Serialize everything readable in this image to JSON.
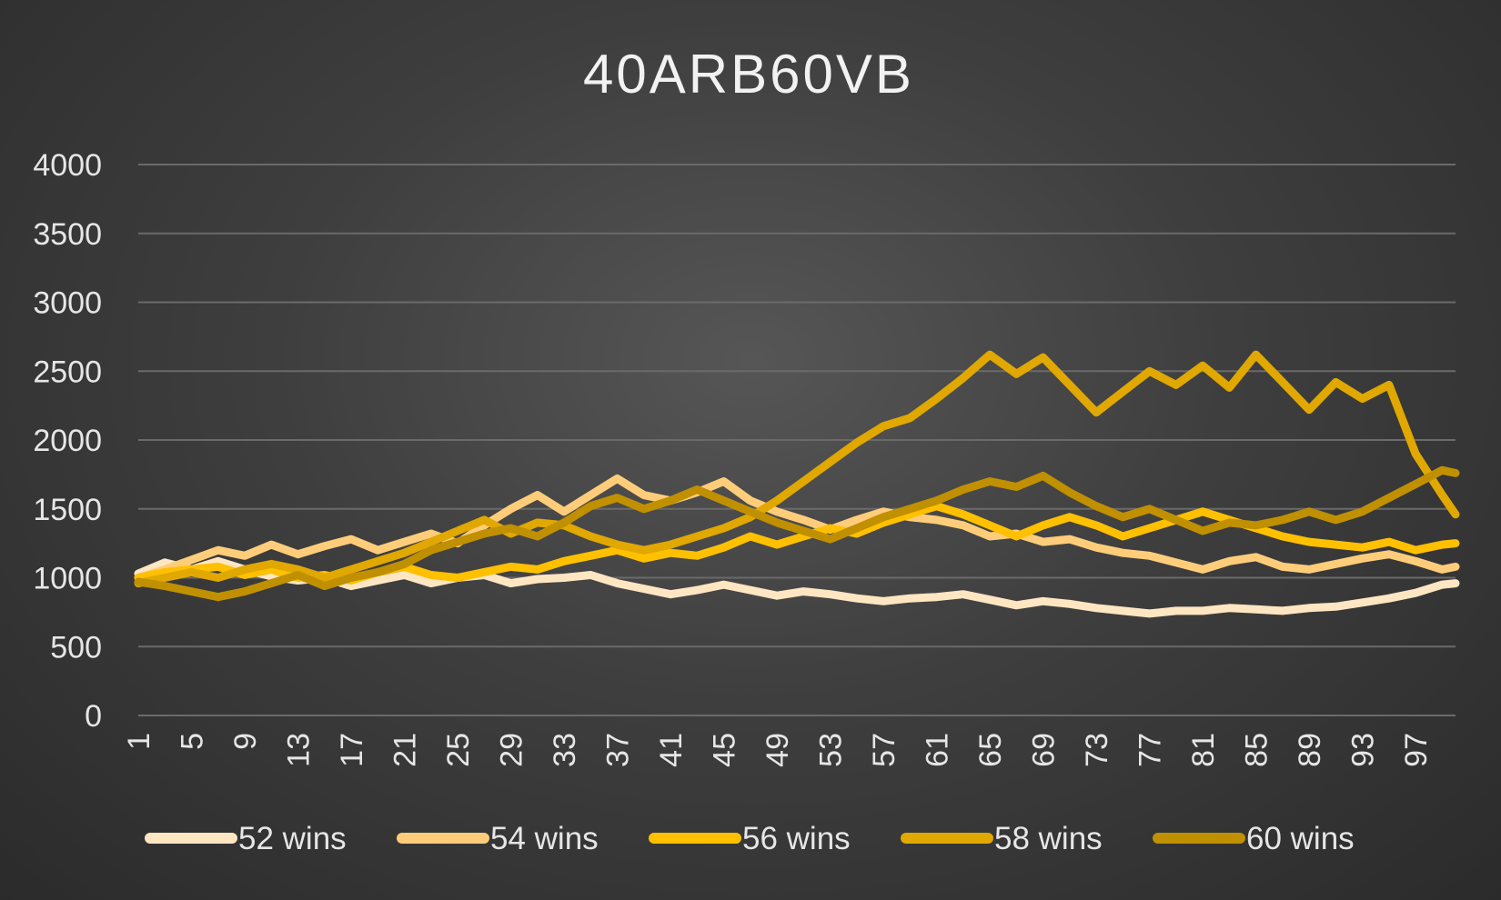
{
  "chart_data": {
    "type": "line",
    "title": "40ARB60VB",
    "xlabel": "",
    "ylabel": "",
    "ylim": [
      0,
      4000
    ],
    "yticks": [
      0,
      500,
      1000,
      1500,
      2000,
      2500,
      3000,
      3500,
      4000
    ],
    "xlim": [
      1,
      100
    ],
    "xticks": [
      1,
      5,
      9,
      13,
      17,
      21,
      25,
      29,
      33,
      37,
      41,
      45,
      49,
      53,
      57,
      61,
      65,
      69,
      73,
      77,
      81,
      85,
      89,
      93,
      97
    ],
    "grid": true,
    "legend_position": "bottom",
    "series": [
      {
        "name": "52 wins",
        "color": "#FFE6C2",
        "points": [
          [
            1,
            1030
          ],
          [
            3,
            1110
          ],
          [
            5,
            1060
          ],
          [
            7,
            1120
          ],
          [
            9,
            1060
          ],
          [
            11,
            1010
          ],
          [
            13,
            980
          ],
          [
            15,
            1000
          ],
          [
            17,
            940
          ],
          [
            19,
            980
          ],
          [
            21,
            1020
          ],
          [
            23,
            960
          ],
          [
            25,
            1000
          ],
          [
            27,
            1020
          ],
          [
            29,
            960
          ],
          [
            31,
            990
          ],
          [
            33,
            1000
          ],
          [
            35,
            1020
          ],
          [
            37,
            960
          ],
          [
            39,
            920
          ],
          [
            41,
            880
          ],
          [
            43,
            910
          ],
          [
            45,
            950
          ],
          [
            47,
            910
          ],
          [
            49,
            870
          ],
          [
            51,
            900
          ],
          [
            53,
            880
          ],
          [
            55,
            850
          ],
          [
            57,
            830
          ],
          [
            59,
            850
          ],
          [
            61,
            860
          ],
          [
            63,
            880
          ],
          [
            65,
            840
          ],
          [
            67,
            800
          ],
          [
            69,
            830
          ],
          [
            71,
            810
          ],
          [
            73,
            780
          ],
          [
            75,
            760
          ],
          [
            77,
            740
          ],
          [
            79,
            760
          ],
          [
            81,
            760
          ],
          [
            83,
            780
          ],
          [
            85,
            770
          ],
          [
            87,
            760
          ],
          [
            89,
            780
          ],
          [
            91,
            790
          ],
          [
            93,
            820
          ],
          [
            95,
            850
          ],
          [
            97,
            890
          ],
          [
            99,
            950
          ],
          [
            100,
            960
          ]
        ]
      },
      {
        "name": "54 wins",
        "color": "#FFCD7A",
        "points": [
          [
            1,
            1000
          ],
          [
            3,
            1060
          ],
          [
            5,
            1130
          ],
          [
            7,
            1200
          ],
          [
            9,
            1160
          ],
          [
            11,
            1240
          ],
          [
            13,
            1170
          ],
          [
            15,
            1230
          ],
          [
            17,
            1280
          ],
          [
            19,
            1200
          ],
          [
            21,
            1260
          ],
          [
            23,
            1320
          ],
          [
            25,
            1250
          ],
          [
            27,
            1380
          ],
          [
            29,
            1500
          ],
          [
            31,
            1600
          ],
          [
            33,
            1480
          ],
          [
            35,
            1600
          ],
          [
            37,
            1720
          ],
          [
            39,
            1600
          ],
          [
            41,
            1560
          ],
          [
            43,
            1620
          ],
          [
            45,
            1700
          ],
          [
            47,
            1560
          ],
          [
            49,
            1480
          ],
          [
            51,
            1420
          ],
          [
            53,
            1350
          ],
          [
            55,
            1420
          ],
          [
            57,
            1480
          ],
          [
            59,
            1440
          ],
          [
            61,
            1420
          ],
          [
            63,
            1380
          ],
          [
            65,
            1300
          ],
          [
            67,
            1320
          ],
          [
            69,
            1260
          ],
          [
            71,
            1280
          ],
          [
            73,
            1220
          ],
          [
            75,
            1180
          ],
          [
            77,
            1160
          ],
          [
            79,
            1110
          ],
          [
            81,
            1060
          ],
          [
            83,
            1120
          ],
          [
            85,
            1150
          ],
          [
            87,
            1080
          ],
          [
            89,
            1060
          ],
          [
            91,
            1100
          ],
          [
            93,
            1140
          ],
          [
            95,
            1170
          ],
          [
            97,
            1120
          ],
          [
            99,
            1060
          ],
          [
            100,
            1080
          ]
        ]
      },
      {
        "name": "56 wins",
        "color": "#FFC000",
        "points": [
          [
            1,
            1000
          ],
          [
            3,
            1040
          ],
          [
            5,
            1060
          ],
          [
            7,
            1080
          ],
          [
            9,
            1020
          ],
          [
            11,
            1060
          ],
          [
            13,
            1000
          ],
          [
            15,
            1020
          ],
          [
            17,
            980
          ],
          [
            19,
            1040
          ],
          [
            21,
            1080
          ],
          [
            23,
            1020
          ],
          [
            25,
            1000
          ],
          [
            27,
            1040
          ],
          [
            29,
            1080
          ],
          [
            31,
            1060
          ],
          [
            33,
            1120
          ],
          [
            35,
            1160
          ],
          [
            37,
            1200
          ],
          [
            39,
            1140
          ],
          [
            41,
            1180
          ],
          [
            43,
            1160
          ],
          [
            45,
            1220
          ],
          [
            47,
            1300
          ],
          [
            49,
            1240
          ],
          [
            51,
            1300
          ],
          [
            53,
            1360
          ],
          [
            55,
            1320
          ],
          [
            57,
            1400
          ],
          [
            59,
            1460
          ],
          [
            61,
            1520
          ],
          [
            63,
            1460
          ],
          [
            65,
            1380
          ],
          [
            67,
            1300
          ],
          [
            69,
            1380
          ],
          [
            71,
            1440
          ],
          [
            73,
            1380
          ],
          [
            75,
            1300
          ],
          [
            77,
            1360
          ],
          [
            79,
            1420
          ],
          [
            81,
            1480
          ],
          [
            83,
            1420
          ],
          [
            85,
            1360
          ],
          [
            87,
            1300
          ],
          [
            89,
            1260
          ],
          [
            91,
            1240
          ],
          [
            93,
            1220
          ],
          [
            95,
            1260
          ],
          [
            97,
            1200
          ],
          [
            99,
            1240
          ],
          [
            100,
            1250
          ]
        ]
      },
      {
        "name": "58 wins",
        "color": "#E0A800",
        "points": [
          [
            1,
            960
          ],
          [
            3,
            1000
          ],
          [
            5,
            1040
          ],
          [
            7,
            1000
          ],
          [
            9,
            1060
          ],
          [
            11,
            1100
          ],
          [
            13,
            1060
          ],
          [
            15,
            1000
          ],
          [
            17,
            1060
          ],
          [
            19,
            1120
          ],
          [
            21,
            1180
          ],
          [
            23,
            1260
          ],
          [
            25,
            1340
          ],
          [
            27,
            1420
          ],
          [
            29,
            1320
          ],
          [
            31,
            1400
          ],
          [
            33,
            1380
          ],
          [
            35,
            1300
          ],
          [
            37,
            1240
          ],
          [
            39,
            1200
          ],
          [
            41,
            1240
          ],
          [
            43,
            1300
          ],
          [
            45,
            1360
          ],
          [
            47,
            1440
          ],
          [
            49,
            1560
          ],
          [
            51,
            1700
          ],
          [
            53,
            1840
          ],
          [
            55,
            1980
          ],
          [
            57,
            2100
          ],
          [
            59,
            2160
          ],
          [
            61,
            2300
          ],
          [
            63,
            2450
          ],
          [
            65,
            2620
          ],
          [
            67,
            2480
          ],
          [
            69,
            2600
          ],
          [
            71,
            2400
          ],
          [
            73,
            2200
          ],
          [
            75,
            2350
          ],
          [
            77,
            2500
          ],
          [
            79,
            2400
          ],
          [
            81,
            2540
          ],
          [
            83,
            2380
          ],
          [
            85,
            2620
          ],
          [
            87,
            2420
          ],
          [
            89,
            2220
          ],
          [
            91,
            2420
          ],
          [
            93,
            2300
          ],
          [
            95,
            2400
          ],
          [
            97,
            1900
          ],
          [
            99,
            1600
          ],
          [
            100,
            1460
          ]
        ]
      },
      {
        "name": "60 wins",
        "color": "#C09000",
        "points": [
          [
            1,
            970
          ],
          [
            3,
            940
          ],
          [
            5,
            900
          ],
          [
            7,
            860
          ],
          [
            9,
            900
          ],
          [
            11,
            960
          ],
          [
            13,
            1020
          ],
          [
            15,
            940
          ],
          [
            17,
            1000
          ],
          [
            19,
            1040
          ],
          [
            21,
            1100
          ],
          [
            23,
            1200
          ],
          [
            25,
            1260
          ],
          [
            27,
            1320
          ],
          [
            29,
            1360
          ],
          [
            31,
            1300
          ],
          [
            33,
            1400
          ],
          [
            35,
            1520
          ],
          [
            37,
            1580
          ],
          [
            39,
            1500
          ],
          [
            41,
            1560
          ],
          [
            43,
            1640
          ],
          [
            45,
            1560
          ],
          [
            47,
            1480
          ],
          [
            49,
            1400
          ],
          [
            51,
            1340
          ],
          [
            53,
            1280
          ],
          [
            55,
            1360
          ],
          [
            57,
            1440
          ],
          [
            59,
            1500
          ],
          [
            61,
            1560
          ],
          [
            63,
            1640
          ],
          [
            65,
            1700
          ],
          [
            67,
            1660
          ],
          [
            69,
            1740
          ],
          [
            71,
            1620
          ],
          [
            73,
            1520
          ],
          [
            75,
            1440
          ],
          [
            77,
            1500
          ],
          [
            79,
            1420
          ],
          [
            81,
            1340
          ],
          [
            83,
            1400
          ],
          [
            85,
            1380
          ],
          [
            87,
            1420
          ],
          [
            89,
            1480
          ],
          [
            91,
            1420
          ],
          [
            93,
            1480
          ],
          [
            95,
            1580
          ],
          [
            97,
            1680
          ],
          [
            99,
            1780
          ],
          [
            100,
            1760
          ]
        ]
      }
    ]
  }
}
